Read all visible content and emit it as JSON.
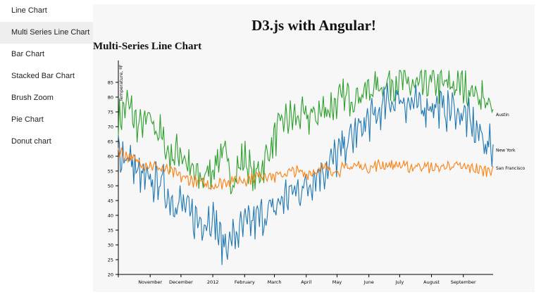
{
  "nav": {
    "items": [
      {
        "label": "Line Chart",
        "active": false
      },
      {
        "label": "Multi Series Line Chart",
        "active": true
      },
      {
        "label": "Bar Chart",
        "active": false
      },
      {
        "label": "Stacked Bar Chart",
        "active": false
      },
      {
        "label": "Brush Zoom",
        "active": false
      },
      {
        "label": "Pie Chart",
        "active": false
      },
      {
        "label": "Donut chart",
        "active": false
      }
    ]
  },
  "page": {
    "title": "D3.js with Angular!",
    "chart_heading": "Multi-Series Line Chart"
  },
  "chart_data": {
    "type": "line",
    "title": "Multi-Series Line Chart",
    "xlabel": "",
    "ylabel": "Temperature, ºF",
    "x_ticks": [
      "November",
      "December",
      "2012",
      "February",
      "March",
      "April",
      "May",
      "June",
      "July",
      "August",
      "September"
    ],
    "y_ticks": [
      20,
      25,
      30,
      35,
      40,
      45,
      50,
      55,
      60,
      65,
      70,
      75,
      80,
      85
    ],
    "xlim": [
      "2011-10-01",
      "2012-09-30"
    ],
    "ylim": [
      20,
      90
    ],
    "grid": false,
    "legend": "line-end labels",
    "series": [
      {
        "name": "Austin",
        "color": "#2ca02c",
        "values": [
          [
            "2011-10-01",
            72
          ],
          [
            "2011-10-10",
            78
          ],
          [
            "2011-10-20",
            70
          ],
          [
            "2011-11-01",
            72
          ],
          [
            "2011-11-10",
            68
          ],
          [
            "2011-11-20",
            60
          ],
          [
            "2011-12-01",
            62
          ],
          [
            "2011-12-10",
            55
          ],
          [
            "2011-12-20",
            52
          ],
          [
            "2012-01-01",
            56
          ],
          [
            "2012-01-10",
            62
          ],
          [
            "2012-01-20",
            52
          ],
          [
            "2012-02-01",
            60
          ],
          [
            "2012-02-10",
            52
          ],
          [
            "2012-02-20",
            58
          ],
          [
            "2012-03-01",
            66
          ],
          [
            "2012-03-10",
            72
          ],
          [
            "2012-03-20",
            73
          ],
          [
            "2012-04-01",
            73
          ],
          [
            "2012-04-10",
            74
          ],
          [
            "2012-04-20",
            76
          ],
          [
            "2012-05-01",
            78
          ],
          [
            "2012-05-10",
            80
          ],
          [
            "2012-05-20",
            81
          ],
          [
            "2012-06-01",
            82
          ],
          [
            "2012-06-10",
            84
          ],
          [
            "2012-06-20",
            85
          ],
          [
            "2012-07-01",
            86
          ],
          [
            "2012-07-10",
            84
          ],
          [
            "2012-07-20",
            83
          ],
          [
            "2012-08-01",
            85
          ],
          [
            "2012-08-10",
            84
          ],
          [
            "2012-08-20",
            84
          ],
          [
            "2012-09-01",
            84
          ],
          [
            "2012-09-10",
            82
          ],
          [
            "2012-09-20",
            80
          ],
          [
            "2012-09-30",
            74
          ]
        ]
      },
      {
        "name": "New York",
        "color": "#1f77b4",
        "values": [
          [
            "2011-10-01",
            62
          ],
          [
            "2011-10-10",
            60
          ],
          [
            "2011-10-20",
            54
          ],
          [
            "2011-11-01",
            50
          ],
          [
            "2011-11-10",
            52
          ],
          [
            "2011-11-20",
            46
          ],
          [
            "2011-12-01",
            44
          ],
          [
            "2011-12-10",
            40
          ],
          [
            "2011-12-20",
            38
          ],
          [
            "2012-01-01",
            40
          ],
          [
            "2012-01-10",
            30
          ],
          [
            "2012-01-20",
            32
          ],
          [
            "2012-02-01",
            36
          ],
          [
            "2012-02-10",
            38
          ],
          [
            "2012-02-20",
            40
          ],
          [
            "2012-03-01",
            42
          ],
          [
            "2012-03-10",
            46
          ],
          [
            "2012-03-20",
            48
          ],
          [
            "2012-04-01",
            50
          ],
          [
            "2012-04-10",
            54
          ],
          [
            "2012-04-20",
            56
          ],
          [
            "2012-05-01",
            60
          ],
          [
            "2012-05-10",
            64
          ],
          [
            "2012-05-20",
            68
          ],
          [
            "2012-06-01",
            72
          ],
          [
            "2012-06-10",
            74
          ],
          [
            "2012-06-20",
            78
          ],
          [
            "2012-07-01",
            80
          ],
          [
            "2012-07-10",
            78
          ],
          [
            "2012-07-20",
            76
          ],
          [
            "2012-08-01",
            78
          ],
          [
            "2012-08-10",
            76
          ],
          [
            "2012-08-20",
            76
          ],
          [
            "2012-09-01",
            74
          ],
          [
            "2012-09-10",
            70
          ],
          [
            "2012-09-20",
            66
          ],
          [
            "2012-09-30",
            62
          ]
        ]
      },
      {
        "name": "San Francisco",
        "color": "#ff7f0e",
        "values": [
          [
            "2011-10-01",
            62
          ],
          [
            "2011-10-10",
            60
          ],
          [
            "2011-10-20",
            58
          ],
          [
            "2011-11-01",
            57
          ],
          [
            "2011-11-10",
            56
          ],
          [
            "2011-11-20",
            55
          ],
          [
            "2011-12-01",
            53
          ],
          [
            "2011-12-10",
            52
          ],
          [
            "2011-12-20",
            51
          ],
          [
            "2012-01-01",
            50
          ],
          [
            "2012-01-10",
            51
          ],
          [
            "2012-01-20",
            52
          ],
          [
            "2012-02-01",
            52
          ],
          [
            "2012-02-10",
            53
          ],
          [
            "2012-02-20",
            54
          ],
          [
            "2012-03-01",
            53
          ],
          [
            "2012-03-10",
            54
          ],
          [
            "2012-03-20",
            55
          ],
          [
            "2012-04-01",
            54
          ],
          [
            "2012-04-10",
            55
          ],
          [
            "2012-04-20",
            56
          ],
          [
            "2012-05-01",
            55
          ],
          [
            "2012-05-10",
            56
          ],
          [
            "2012-05-20",
            57
          ],
          [
            "2012-06-01",
            56
          ],
          [
            "2012-06-10",
            57
          ],
          [
            "2012-06-20",
            57
          ],
          [
            "2012-07-01",
            57
          ],
          [
            "2012-07-10",
            56
          ],
          [
            "2012-07-20",
            57
          ],
          [
            "2012-08-01",
            56
          ],
          [
            "2012-08-10",
            56
          ],
          [
            "2012-08-20",
            57
          ],
          [
            "2012-09-01",
            56
          ],
          [
            "2012-09-10",
            56
          ],
          [
            "2012-09-20",
            55
          ],
          [
            "2012-09-30",
            56
          ]
        ]
      }
    ]
  }
}
